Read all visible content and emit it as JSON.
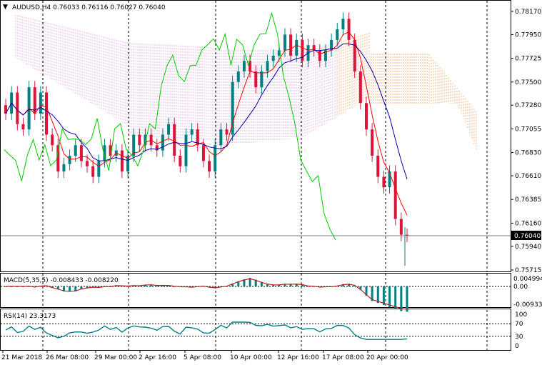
{
  "header": {
    "symbol_line": "AUDUSD,H4  0.76033 0.76116 0.76027 0.76040"
  },
  "price_axis": {
    "ticks": [
      "0.78170",
      "0.77950",
      "0.77725",
      "0.77500",
      "0.77280",
      "0.77055",
      "0.76830",
      "0.76610",
      "0.76385",
      "0.76160",
      "0.75940",
      "0.75715"
    ],
    "current_price": "0.76040"
  },
  "macd": {
    "label": "MACD(5,35,5) -0.008433 -0.008220",
    "ticks": [
      "0.004994",
      "0.00",
      "-0.009335"
    ]
  },
  "rsi": {
    "label": "RSI(14) 23.3173",
    "ticks": [
      "100",
      "70",
      "30",
      "0"
    ]
  },
  "time_axis": {
    "labels": [
      "21 Mar 2018",
      "26 Mar 08:00",
      "29 Mar 00:00",
      "2 Apr 16:00",
      "5 Apr 08:00",
      "10 Apr 00:00",
      "12 Apr 16:00",
      "17 Apr 08:00",
      "20 Apr 00:00"
    ]
  },
  "colors": {
    "bull": "#008080",
    "bear": "#dc143c",
    "tenkan": "#ff0000",
    "kijun": "#0000aa",
    "chikou": "#00c800",
    "kumo_up": "#dda0dd",
    "kumo_down": "#f4a460",
    "macd_hist": "#008080",
    "macd_signal": "#b22222",
    "rsi_line": "#008080"
  },
  "chart_data": {
    "type": "candlestick",
    "symbol": "AUDUSD",
    "timeframe": "H4",
    "ohlc": {
      "open": 0.76033,
      "high": 0.76116,
      "low": 0.76027,
      "close": 0.7604
    },
    "ylim": [
      0.7566,
      0.7825
    ],
    "x": [
      "21 Mar 2018",
      "26 Mar 08:00",
      "29 Mar 00:00",
      "2 Apr 16:00",
      "5 Apr 08:00",
      "10 Apr 00:00",
      "12 Apr 16:00",
      "17 Apr 08:00",
      "20 Apr 00:00"
    ],
    "close_path": [
      0.772,
      0.774,
      0.771,
      0.7705,
      0.7745,
      0.772,
      0.774,
      0.77,
      0.769,
      0.7665,
      0.7672,
      0.768,
      0.769,
      0.7675,
      0.767,
      0.766,
      0.7675,
      0.769,
      0.768,
      0.7685,
      0.7665,
      0.768,
      0.77,
      0.769,
      0.77,
      0.769,
      0.7685,
      0.77,
      0.771,
      0.768,
      0.767,
      0.77,
      0.7705,
      0.769,
      0.7675,
      0.7665,
      0.769,
      0.7705,
      0.77,
      0.775,
      0.776,
      0.777,
      0.776,
      0.7745,
      0.776,
      0.777,
      0.7775,
      0.778,
      0.7795,
      0.7775,
      0.779,
      0.777,
      0.7785,
      0.778,
      0.777,
      0.778,
      0.779,
      0.78,
      0.781,
      0.779,
      0.776,
      0.773,
      0.7705,
      0.768,
      0.766,
      0.765,
      0.7665,
      0.762,
      0.7605,
      0.7604
    ],
    "macd": {
      "value": -0.008433,
      "signal": -0.00822,
      "ylim": [
        -0.009335,
        0.004994
      ]
    },
    "rsi": {
      "value": 23.3173,
      "levels": [
        70,
        30
      ],
      "ylim": [
        0,
        100
      ]
    },
    "indicators": [
      "Ichimoku Kinko Hyo"
    ],
    "grid": true
  }
}
